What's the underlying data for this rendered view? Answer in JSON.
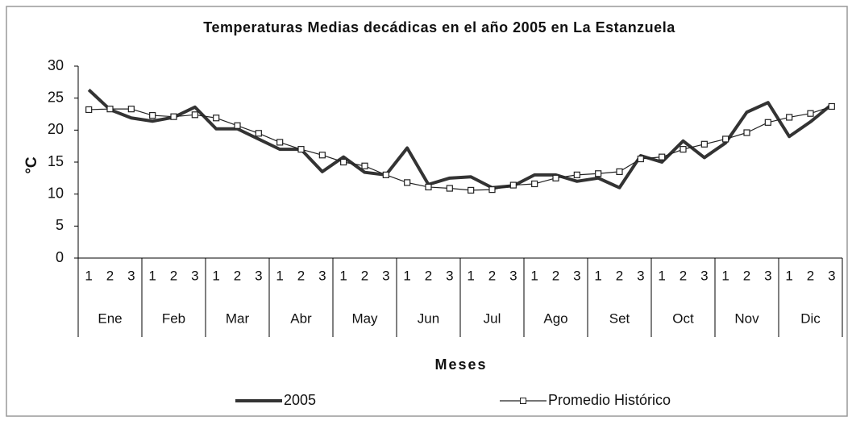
{
  "chart_data": {
    "type": "line",
    "title": "Temperaturas Medias decádicas en el año 2005 en La Estanzuela",
    "y_label": "°C",
    "x_label": "Meses",
    "categories": [
      "1",
      "2",
      "3",
      "1",
      "2",
      "3",
      "1",
      "2",
      "3",
      "1",
      "2",
      "3",
      "1",
      "2",
      "3",
      "1",
      "2",
      "3",
      "1",
      "2",
      "3",
      "1",
      "2",
      "3",
      "1",
      "2",
      "3",
      "1",
      "2",
      "3",
      "1",
      "2",
      "3",
      "1",
      "2",
      "3"
    ],
    "groups": [
      "Ene",
      "Feb",
      "Mar",
      "Abr",
      "May",
      "Jun",
      "Jul",
      "Ago",
      "Set",
      "Oct",
      "Nov",
      "Dic"
    ],
    "series": [
      {
        "name": "2005",
        "color": "#333333",
        "marker": "none",
        "values": [
          26.3,
          23.2,
          21.9,
          21.4,
          22.0,
          23.6,
          20.2,
          20.2,
          18.6,
          17.0,
          17.0,
          13.5,
          15.8,
          13.4,
          13.0,
          17.2,
          11.5,
          12.5,
          12.7,
          11.0,
          11.3,
          13.0,
          13.0,
          12.0,
          12.5,
          11.0,
          16.0,
          15.0,
          18.3,
          15.7,
          18.0,
          22.8,
          24.3,
          19.0,
          21.3,
          24.0
        ]
      },
      {
        "name": "Promedio Histórico",
        "color": "#222222",
        "marker": "square",
        "values": [
          23.2,
          23.3,
          23.3,
          22.3,
          22.1,
          22.4,
          21.9,
          20.7,
          19.5,
          18.1,
          17.0,
          16.1,
          15.0,
          14.4,
          13.0,
          11.8,
          11.1,
          10.9,
          10.6,
          10.7,
          11.4,
          11.6,
          12.5,
          13.0,
          13.2,
          13.5,
          15.5,
          15.8,
          17.0,
          17.8,
          18.6,
          19.6,
          21.2,
          22.0,
          22.6,
          23.7
        ]
      }
    ],
    "ylim": [
      0,
      30
    ],
    "yticks": [
      0,
      5,
      10,
      15,
      20,
      25,
      30
    ],
    "grid": false,
    "legend": "bottom"
  }
}
